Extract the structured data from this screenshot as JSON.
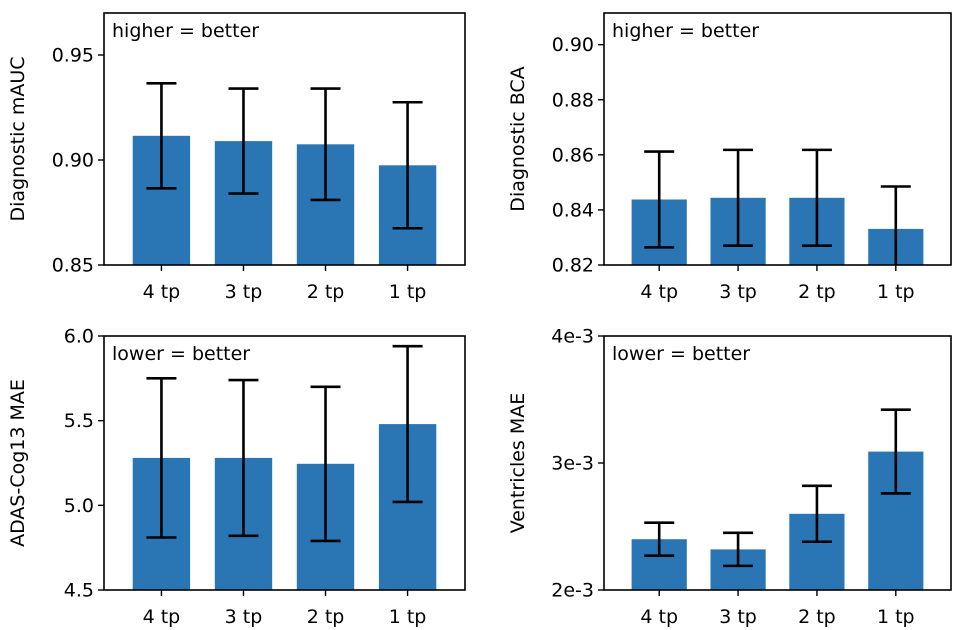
{
  "chart_data": [
    {
      "type": "bar",
      "categories": [
        "4 tp",
        "3 tp",
        "2 tp",
        "1 tp"
      ],
      "values": [
        0.9115,
        0.909,
        0.9075,
        0.8975
      ],
      "errors": [
        0.025,
        0.025,
        0.0265,
        0.03
      ],
      "ylabel": "Diagnostic mAUC",
      "xlabel": "",
      "ylim": [
        0.85,
        0.97
      ],
      "yticks": [
        0.85,
        0.9,
        0.95
      ],
      "ytick_labels": [
        "0.85",
        "0.90",
        "0.95"
      ],
      "annotation": "higher = better",
      "color": "#2a76b5",
      "grid": false
    },
    {
      "type": "bar",
      "categories": [
        "4 tp",
        "3 tp",
        "2 tp",
        "1 tp"
      ],
      "values": [
        0.8438,
        0.8444,
        0.8444,
        0.8331
      ],
      "errors": [
        0.0174,
        0.0174,
        0.0174,
        0.0154
      ],
      "ylabel": "Diagnostic BCA",
      "xlabel": "",
      "ylim": [
        0.82,
        0.9115
      ],
      "yticks": [
        0.82,
        0.84,
        0.86,
        0.88,
        0.9
      ],
      "ytick_labels": [
        "0.82",
        "0.84",
        "0.86",
        "0.88",
        "0.90"
      ],
      "annotation": "higher = better",
      "color": "#2a76b5",
      "grid": false
    },
    {
      "type": "bar",
      "categories": [
        "4 tp",
        "3 tp",
        "2 tp",
        "1 tp"
      ],
      "values": [
        5.28,
        5.28,
        5.245,
        5.48
      ],
      "errors": [
        0.47,
        0.46,
        0.455,
        0.46
      ],
      "ylabel": "ADAS-Cog13 MAE",
      "xlabel": "",
      "ylim": [
        4.5,
        6.0
      ],
      "yticks": [
        4.5,
        5.0,
        5.5,
        6.0
      ],
      "ytick_labels": [
        "4.5",
        "5.0",
        "5.5",
        "6.0"
      ],
      "annotation": "lower = better",
      "color": "#2a76b5",
      "grid": false
    },
    {
      "type": "bar",
      "categories": [
        "4 tp",
        "3 tp",
        "2 tp",
        "1 tp"
      ],
      "values": [
        0.0024,
        0.00232,
        0.0026,
        0.00309
      ],
      "errors": [
        0.00013,
        0.00013,
        0.00022,
        0.00033
      ],
      "ylabel": "Ventricles MAE",
      "xlabel": "",
      "ylim": [
        0.002,
        0.004
      ],
      "yticks": [
        0.002,
        0.003,
        0.004
      ],
      "ytick_labels": [
        "2e-3",
        "3e-3",
        "4e-3"
      ],
      "annotation": "lower = better",
      "color": "#2a76b5",
      "grid": false
    }
  ]
}
